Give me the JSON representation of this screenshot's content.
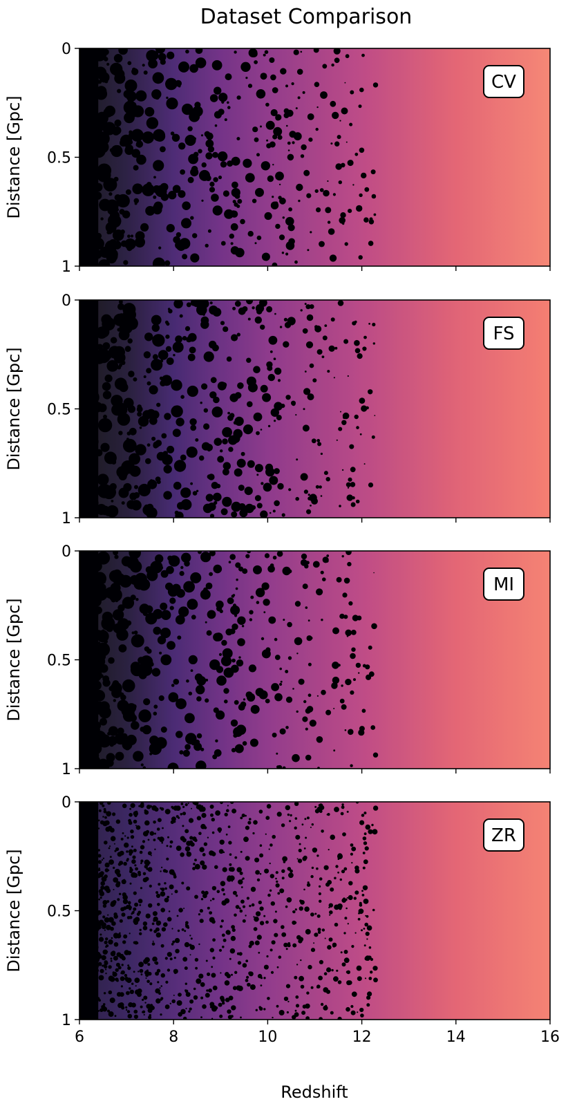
{
  "chart_data": {
    "type": "heatmap",
    "title": "Dataset Comparison",
    "xlabel": "Redshift",
    "ylabel": "Distance [Gpc]",
    "xlim": [
      6,
      16
    ],
    "ylim": [
      0,
      1
    ],
    "y_inverted": true,
    "xticks": [
      6,
      8,
      10,
      12,
      14,
      16
    ],
    "xtick_labels": [
      "6",
      "8",
      "10",
      "12",
      "14",
      "16"
    ],
    "yticks": [
      0,
      0.5,
      1
    ],
    "ytick_labels": [
      "0",
      "0.5",
      "1"
    ],
    "colormap": "magma",
    "colormap_stops": [
      "#000004",
      "#2c115f",
      "#721f81",
      "#b73779",
      "#f1605d",
      "#feb078",
      "#fcfdbf"
    ],
    "shared_x": true,
    "grid": false,
    "panels": [
      {
        "label": "CV",
        "texture": "smooth",
        "intensity_at_x": [
          [
            6,
            0.0
          ],
          [
            7,
            0.08
          ],
          [
            8,
            0.2
          ],
          [
            9,
            0.3
          ],
          [
            10,
            0.38
          ],
          [
            12,
            0.5
          ],
          [
            14,
            0.62
          ],
          [
            16,
            0.72
          ]
        ]
      },
      {
        "label": "FS",
        "texture": "smooth",
        "intensity_at_x": [
          [
            6,
            0.0
          ],
          [
            7,
            0.06
          ],
          [
            8,
            0.18
          ],
          [
            9,
            0.28
          ],
          [
            10,
            0.37
          ],
          [
            12,
            0.49
          ],
          [
            14,
            0.61
          ],
          [
            16,
            0.7
          ]
        ]
      },
      {
        "label": "MI",
        "texture": "smooth",
        "intensity_at_x": [
          [
            6,
            0.0
          ],
          [
            7,
            0.07
          ],
          [
            8,
            0.19
          ],
          [
            9,
            0.29
          ],
          [
            10,
            0.38
          ],
          [
            12,
            0.5
          ],
          [
            14,
            0.62
          ],
          [
            16,
            0.71
          ]
        ]
      },
      {
        "label": "ZR",
        "texture": "speckled",
        "intensity_at_x": [
          [
            6,
            0.08
          ],
          [
            7,
            0.14
          ],
          [
            8,
            0.22
          ],
          [
            9,
            0.3
          ],
          [
            10,
            0.38
          ],
          [
            12,
            0.5
          ],
          [
            14,
            0.62
          ],
          [
            16,
            0.71
          ]
        ]
      }
    ]
  }
}
